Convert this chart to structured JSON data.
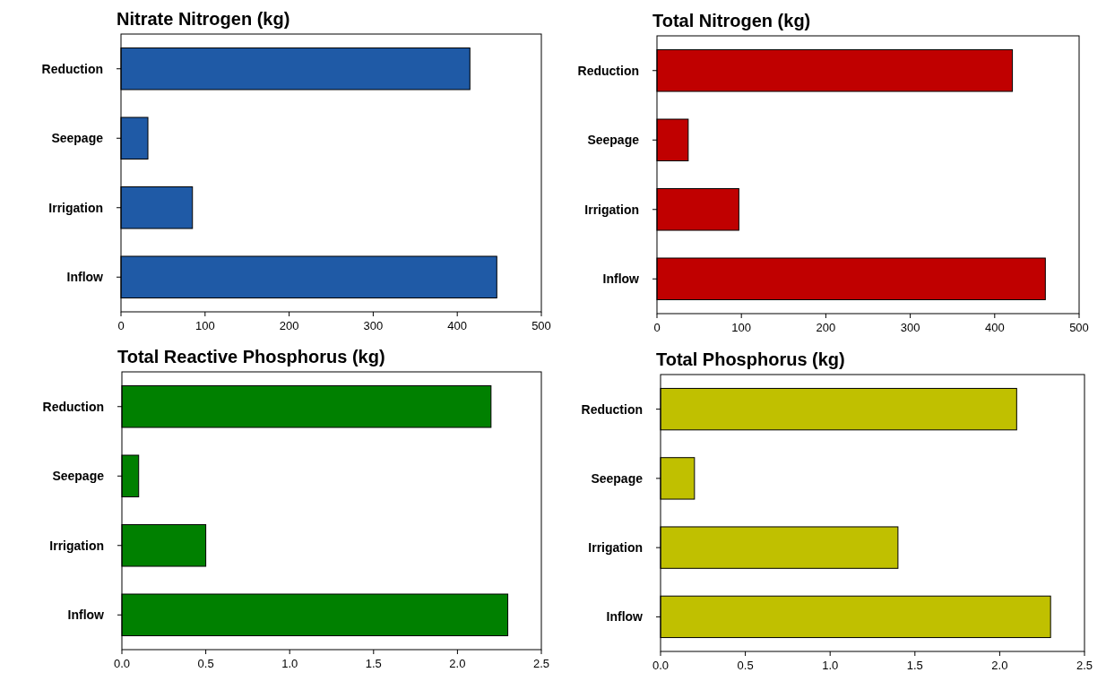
{
  "chart_data": [
    {
      "type": "bar",
      "orientation": "horizontal",
      "title": "Nitrate Nitrogen (kg)",
      "categories": [
        "Reduction",
        "Seepage",
        "Irrigation",
        "Inflow"
      ],
      "values": [
        415,
        32,
        85,
        447
      ],
      "color": "#1f5aa6",
      "xlim": [
        0,
        500
      ],
      "xticks": [
        0,
        100,
        200,
        300,
        400,
        500
      ],
      "grid": false,
      "legend": false
    },
    {
      "type": "bar",
      "orientation": "horizontal",
      "title": "Total Nitrogen (kg)",
      "categories": [
        "Reduction",
        "Seepage",
        "Irrigation",
        "Inflow"
      ],
      "values": [
        421,
        37,
        97,
        460
      ],
      "color": "#c00000",
      "xlim": [
        0,
        500
      ],
      "xticks": [
        0,
        100,
        200,
        300,
        400,
        500
      ],
      "grid": false,
      "legend": false
    },
    {
      "type": "bar",
      "orientation": "horizontal",
      "title": "Total Reactive Phosphorus (kg)",
      "categories": [
        "Reduction",
        "Seepage",
        "Irrigation",
        "Inflow"
      ],
      "values": [
        2.2,
        0.1,
        0.5,
        2.3
      ],
      "color": "#008000",
      "xlim": [
        0,
        2.5
      ],
      "xticks": [
        {
          "value": 0,
          "label": "0.0"
        },
        0.5,
        {
          "value": 1,
          "label": "1.0"
        },
        1.5,
        {
          "value": 2,
          "label": "2.0"
        },
        2.5
      ],
      "grid": false,
      "legend": false
    },
    {
      "type": "bar",
      "orientation": "horizontal",
      "title": "Total Phosphorus (kg)",
      "categories": [
        "Reduction",
        "Seepage",
        "Irrigation",
        "Inflow"
      ],
      "values": [
        2.1,
        0.2,
        1.4,
        2.3
      ],
      "color": "#c0c000",
      "xlim": [
        0,
        2.5
      ],
      "xticks": [
        {
          "value": 0,
          "label": "0.0"
        },
        0.5,
        {
          "value": 1,
          "label": "1.0"
        },
        1.5,
        {
          "value": 2,
          "label": "2.0"
        },
        2.5
      ],
      "grid": false,
      "legend": false
    }
  ]
}
